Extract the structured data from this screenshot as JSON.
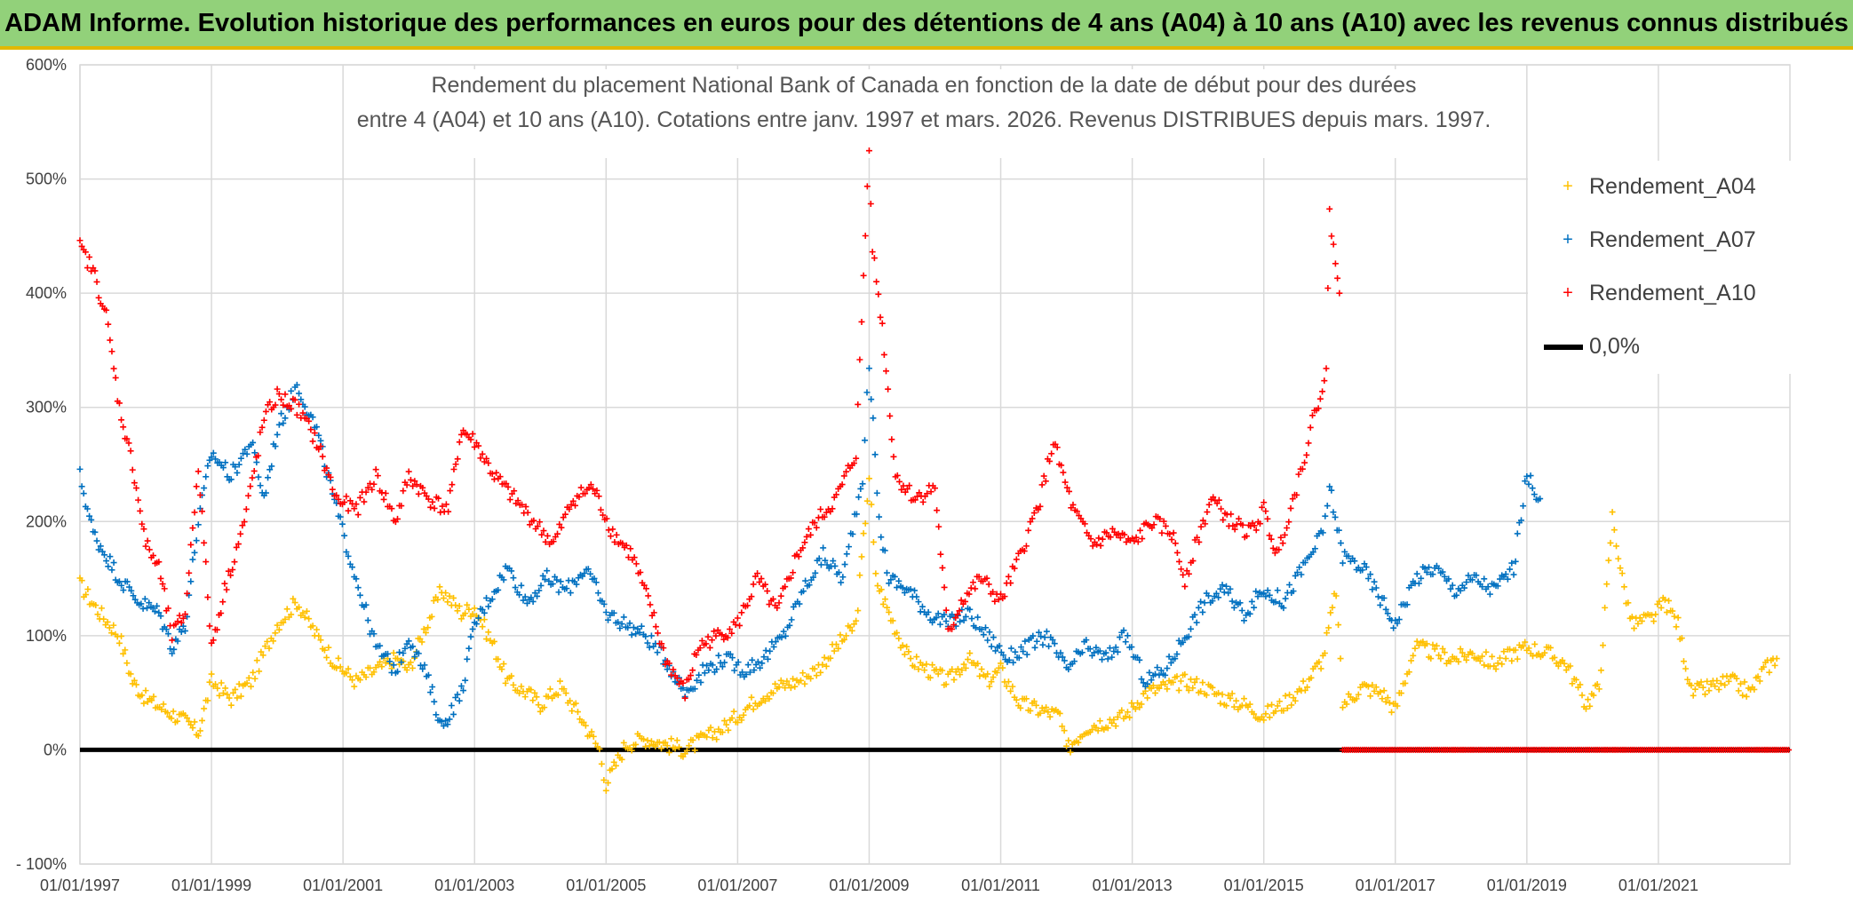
{
  "banner": {
    "title": "ADAM Informe. Evolution historique des performances en euros pour des détentions de 4 ans (A04) à 10 ans (A10) avec les revenus connus distribués",
    "color": "#92d17a"
  },
  "chart_data": {
    "type": "scatter",
    "title_lines": [
      "Rendement du placement National Bank of Canada en fonction de la date de début pour des durées",
      "entre 4 (A04) et 10 ans (A10). Cotations entre janv. 1997 et mars. 2026. Revenus DISTRIBUES depuis mars. 1997."
    ],
    "xlabel": "",
    "ylabel": "",
    "x_unit": "year",
    "xlim": [
      1997.0,
      2023.0
    ],
    "ylim": [
      -100,
      600
    ],
    "y_ticks": [
      -100,
      0,
      100,
      200,
      300,
      400,
      500,
      600
    ],
    "y_tick_labels": [
      "- 100%",
      "0%",
      "100%",
      "200%",
      "300%",
      "400%",
      "500%",
      "600%"
    ],
    "x_ticks": [
      1997,
      1999,
      2001,
      2003,
      2005,
      2007,
      2009,
      2011,
      2013,
      2015,
      2017,
      2019,
      2021
    ],
    "x_tick_labels": [
      "01/01/1997",
      "01/01/1999",
      "01/01/2001",
      "01/01/2003",
      "01/01/2005",
      "01/01/2007",
      "01/01/2009",
      "01/01/2011",
      "01/01/2013",
      "01/01/2015",
      "01/01/2017",
      "01/01/2019",
      "01/01/2021"
    ],
    "grid": true,
    "legend_position": "top-right",
    "series": [
      {
        "name": "Rendement_A04",
        "color": "#ffc000",
        "marker": "+",
        "points": [
          [
            1997.0,
            145
          ],
          [
            1997.3,
            120
          ],
          [
            1997.6,
            100
          ],
          [
            1997.8,
            60
          ],
          [
            1998.0,
            45
          ],
          [
            1998.3,
            35
          ],
          [
            1998.6,
            25
          ],
          [
            1998.8,
            15
          ],
          [
            1999.0,
            60
          ],
          [
            1999.3,
            45
          ],
          [
            1999.6,
            60
          ],
          [
            2000.0,
            110
          ],
          [
            2000.3,
            130
          ],
          [
            2000.6,
            100
          ],
          [
            2000.9,
            75
          ],
          [
            2001.2,
            60
          ],
          [
            2001.5,
            70
          ],
          [
            2001.8,
            80
          ],
          [
            2002.0,
            70
          ],
          [
            2002.2,
            100
          ],
          [
            2002.5,
            140
          ],
          [
            2002.8,
            120
          ],
          [
            2003.0,
            125
          ],
          [
            2003.3,
            90
          ],
          [
            2003.5,
            60
          ],
          [
            2003.8,
            50
          ],
          [
            2004.0,
            40
          ],
          [
            2004.3,
            55
          ],
          [
            2004.6,
            30
          ],
          [
            2004.9,
            0
          ],
          [
            2005.0,
            -30
          ],
          [
            2005.3,
            5
          ],
          [
            2005.6,
            10
          ],
          [
            2005.9,
            5
          ],
          [
            2006.2,
            0
          ],
          [
            2006.5,
            10
          ],
          [
            2006.8,
            20
          ],
          [
            2007.0,
            30
          ],
          [
            2007.3,
            45
          ],
          [
            2007.6,
            55
          ],
          [
            2007.9,
            60
          ],
          [
            2008.2,
            70
          ],
          [
            2008.5,
            90
          ],
          [
            2008.8,
            110
          ],
          [
            2009.0,
            240
          ],
          [
            2009.1,
            150
          ],
          [
            2009.3,
            120
          ],
          [
            2009.6,
            80
          ],
          [
            2009.9,
            70
          ],
          [
            2010.2,
            60
          ],
          [
            2010.5,
            80
          ],
          [
            2010.8,
            60
          ],
          [
            2011.0,
            70
          ],
          [
            2011.3,
            40
          ],
          [
            2011.6,
            35
          ],
          [
            2011.9,
            30
          ],
          [
            2012.0,
            0
          ],
          [
            2012.3,
            20
          ],
          [
            2012.6,
            25
          ],
          [
            2012.9,
            30
          ],
          [
            2013.2,
            50
          ],
          [
            2013.5,
            55
          ],
          [
            2013.8,
            60
          ],
          [
            2014.1,
            55
          ],
          [
            2014.4,
            45
          ],
          [
            2014.7,
            40
          ],
          [
            2015.0,
            30
          ],
          [
            2015.3,
            40
          ],
          [
            2015.6,
            55
          ],
          [
            2015.9,
            80
          ],
          [
            2016.1,
            140
          ],
          [
            2016.2,
            40
          ],
          [
            2016.5,
            55
          ],
          [
            2016.8,
            50
          ],
          [
            2017.0,
            35
          ],
          [
            2017.3,
            90
          ],
          [
            2017.6,
            85
          ],
          [
            2017.9,
            80
          ],
          [
            2018.2,
            85
          ],
          [
            2018.5,
            75
          ],
          [
            2018.8,
            85
          ],
          [
            2019.0,
            90
          ],
          [
            2019.3,
            85
          ],
          [
            2019.6,
            75
          ],
          [
            2019.9,
            40
          ],
          [
            2020.1,
            55
          ],
          [
            2020.3,
            205
          ],
          [
            2020.45,
            150
          ],
          [
            2020.6,
            110
          ],
          [
            2020.9,
            115
          ],
          [
            2021.1,
            130
          ],
          [
            2021.3,
            110
          ],
          [
            2021.5,
            50
          ],
          [
            2021.8,
            55
          ],
          [
            2022.1,
            60
          ],
          [
            2022.4,
            50
          ],
          [
            2022.6,
            70
          ],
          [
            2022.8,
            80
          ]
        ]
      },
      {
        "name": "Rendement_A07",
        "color": "#0070c0",
        "marker": "+",
        "points": [
          [
            1997.0,
            240
          ],
          [
            1997.2,
            190
          ],
          [
            1997.4,
            170
          ],
          [
            1997.6,
            150
          ],
          [
            1997.9,
            130
          ],
          [
            1998.2,
            120
          ],
          [
            1998.4,
            90
          ],
          [
            1998.6,
            110
          ],
          [
            1998.8,
            200
          ],
          [
            1999.0,
            260
          ],
          [
            1999.3,
            240
          ],
          [
            1999.6,
            270
          ],
          [
            1999.8,
            220
          ],
          [
            2000.0,
            280
          ],
          [
            2000.3,
            320
          ],
          [
            2000.6,
            280
          ],
          [
            2000.9,
            210
          ],
          [
            2001.2,
            150
          ],
          [
            2001.5,
            90
          ],
          [
            2001.8,
            70
          ],
          [
            2002.0,
            100
          ],
          [
            2002.3,
            60
          ],
          [
            2002.5,
            20
          ],
          [
            2002.8,
            50
          ],
          [
            2003.0,
            110
          ],
          [
            2003.3,
            140
          ],
          [
            2003.5,
            160
          ],
          [
            2003.8,
            130
          ],
          [
            2004.1,
            150
          ],
          [
            2004.4,
            140
          ],
          [
            2004.7,
            160
          ],
          [
            2005.0,
            120
          ],
          [
            2005.3,
            110
          ],
          [
            2005.6,
            100
          ],
          [
            2005.9,
            80
          ],
          [
            2006.2,
            50
          ],
          [
            2006.5,
            70
          ],
          [
            2006.8,
            80
          ],
          [
            2007.1,
            70
          ],
          [
            2007.4,
            80
          ],
          [
            2007.7,
            100
          ],
          [
            2008.0,
            140
          ],
          [
            2008.3,
            170
          ],
          [
            2008.6,
            150
          ],
          [
            2008.9,
            240
          ],
          [
            2009.0,
            340
          ],
          [
            2009.15,
            200
          ],
          [
            2009.3,
            150
          ],
          [
            2009.6,
            140
          ],
          [
            2009.9,
            120
          ],
          [
            2010.2,
            110
          ],
          [
            2010.5,
            120
          ],
          [
            2010.8,
            100
          ],
          [
            2011.1,
            80
          ],
          [
            2011.4,
            90
          ],
          [
            2011.7,
            100
          ],
          [
            2012.0,
            70
          ],
          [
            2012.3,
            90
          ],
          [
            2012.6,
            80
          ],
          [
            2012.9,
            100
          ],
          [
            2013.2,
            60
          ],
          [
            2013.5,
            70
          ],
          [
            2013.8,
            100
          ],
          [
            2014.1,
            130
          ],
          [
            2014.4,
            140
          ],
          [
            2014.7,
            120
          ],
          [
            2015.0,
            140
          ],
          [
            2015.3,
            130
          ],
          [
            2015.6,
            160
          ],
          [
            2015.9,
            190
          ],
          [
            2016.0,
            230
          ],
          [
            2016.2,
            170
          ],
          [
            2016.5,
            160
          ],
          [
            2016.8,
            130
          ],
          [
            2017.0,
            110
          ],
          [
            2017.3,
            150
          ],
          [
            2017.6,
            160
          ],
          [
            2017.9,
            140
          ],
          [
            2018.2,
            150
          ],
          [
            2018.5,
            140
          ],
          [
            2018.8,
            160
          ],
          [
            2019.0,
            240
          ],
          [
            2019.2,
            220
          ]
        ]
      },
      {
        "name": "Rendement_A10",
        "color": "#ff0000",
        "marker": "+",
        "points": [
          [
            1997.0,
            440
          ],
          [
            1997.2,
            420
          ],
          [
            1997.4,
            380
          ],
          [
            1997.6,
            300
          ],
          [
            1997.8,
            250
          ],
          [
            1998.0,
            180
          ],
          [
            1998.2,
            160
          ],
          [
            1998.4,
            100
          ],
          [
            1998.6,
            120
          ],
          [
            1998.8,
            250
          ],
          [
            1999.0,
            90
          ],
          [
            1999.2,
            140
          ],
          [
            1999.5,
            200
          ],
          [
            1999.8,
            290
          ],
          [
            2000.0,
            310
          ],
          [
            2000.3,
            300
          ],
          [
            2000.6,
            270
          ],
          [
            2000.9,
            220
          ],
          [
            2001.2,
            210
          ],
          [
            2001.5,
            240
          ],
          [
            2001.8,
            200
          ],
          [
            2002.0,
            240
          ],
          [
            2002.3,
            220
          ],
          [
            2002.6,
            210
          ],
          [
            2002.8,
            280
          ],
          [
            2003.0,
            270
          ],
          [
            2003.3,
            240
          ],
          [
            2003.6,
            220
          ],
          [
            2003.9,
            200
          ],
          [
            2004.2,
            180
          ],
          [
            2004.5,
            220
          ],
          [
            2004.8,
            230
          ],
          [
            2005.1,
            190
          ],
          [
            2005.4,
            170
          ],
          [
            2005.7,
            120
          ],
          [
            2005.9,
            80
          ],
          [
            2006.2,
            50
          ],
          [
            2006.4,
            90
          ],
          [
            2006.7,
            100
          ],
          [
            2007.0,
            110
          ],
          [
            2007.3,
            150
          ],
          [
            2007.6,
            120
          ],
          [
            2007.9,
            170
          ],
          [
            2008.2,
            200
          ],
          [
            2008.5,
            220
          ],
          [
            2008.8,
            260
          ],
          [
            2009.0,
            530
          ],
          [
            2009.05,
            440
          ],
          [
            2009.2,
            370
          ],
          [
            2009.4,
            240
          ],
          [
            2009.7,
            220
          ],
          [
            2010.0,
            230
          ],
          [
            2010.2,
            100
          ],
          [
            2010.4,
            130
          ],
          [
            2010.7,
            150
          ],
          [
            2011.0,
            130
          ],
          [
            2011.3,
            170
          ],
          [
            2011.6,
            220
          ],
          [
            2011.8,
            270
          ],
          [
            2012.1,
            210
          ],
          [
            2012.4,
            180
          ],
          [
            2012.7,
            190
          ],
          [
            2013.0,
            180
          ],
          [
            2013.3,
            200
          ],
          [
            2013.6,
            190
          ],
          [
            2013.8,
            150
          ],
          [
            2014.2,
            220
          ],
          [
            2014.5,
            200
          ],
          [
            2014.8,
            190
          ],
          [
            2015.0,
            210
          ],
          [
            2015.2,
            170
          ],
          [
            2015.5,
            230
          ],
          [
            2015.8,
            300
          ],
          [
            2015.95,
            330
          ],
          [
            2016.0,
            470
          ],
          [
            2016.15,
            400
          ]
        ]
      },
      {
        "name": "0,0%",
        "color": "#000000",
        "marker": "line",
        "points": [
          [
            1997.0,
            0
          ],
          [
            2023.0,
            0
          ]
        ]
      }
    ],
    "annotations": [
      {
        "text": "",
        "series": "Rendement_A10",
        "note_points": [
          [
            2016.2,
            0
          ],
          [
            2023.0,
            0
          ]
        ]
      }
    ]
  }
}
